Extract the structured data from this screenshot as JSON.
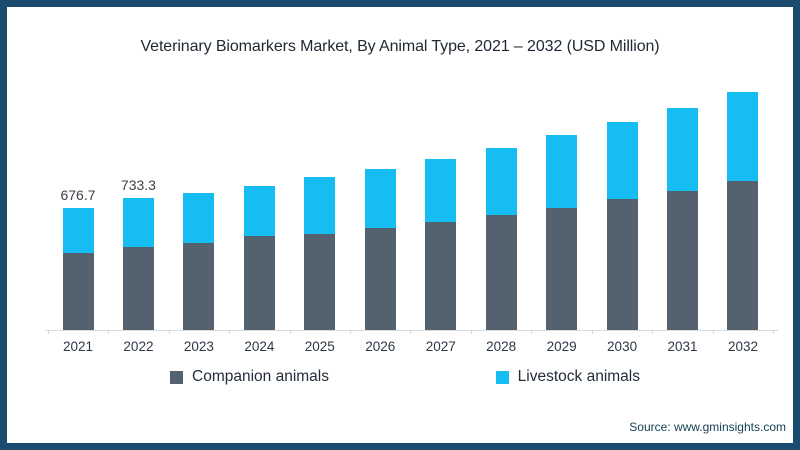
{
  "frame": {
    "border_color": "#1B4B6E",
    "background": "#ffffff"
  },
  "header": {
    "title": "Veterinary Biomarkers Market, By Animal Type, 2021 – 2032 (USD Million)"
  },
  "footer": {
    "source": "Source: www.gminsights.com"
  },
  "legend": {
    "items": [
      {
        "label": "Companion animals",
        "color": "#54626F"
      },
      {
        "label": "Livestock animals",
        "color": "#16BDF2"
      }
    ]
  },
  "chart_data": {
    "type": "bar",
    "stacked": true,
    "title": "Veterinary Biomarkers Market, By Animal Type, 2021 – 2032 (USD Million)",
    "xlabel": "",
    "ylabel": "",
    "ylim": [
      0,
      1400
    ],
    "grid": false,
    "legend_position": "bottom",
    "categories": [
      "2021",
      "2022",
      "2023",
      "2024",
      "2025",
      "2026",
      "2027",
      "2028",
      "2029",
      "2030",
      "2031",
      "2032"
    ],
    "series": [
      {
        "name": "Companion animals",
        "color": "#54626F",
        "values": [
          430,
          460,
          482,
          520,
          536,
          567,
          600,
          640,
          680,
          726,
          774,
          830
        ]
      },
      {
        "name": "Livestock animals",
        "color": "#16BDF2",
        "values": [
          246.7,
          273.3,
          278,
          282,
          312,
          328,
          350,
          370,
          405,
          429,
          461,
          490
        ]
      }
    ],
    "totals": [
      676.7,
      733.3,
      760,
      802,
      848,
      895,
      950,
      1010,
      1085,
      1155,
      1235,
      1320
    ],
    "visible_total_labels": [
      "676.7",
      "733.3",
      "",
      "",
      "",
      "",
      "",
      "",
      "",
      "",
      "",
      ""
    ]
  }
}
